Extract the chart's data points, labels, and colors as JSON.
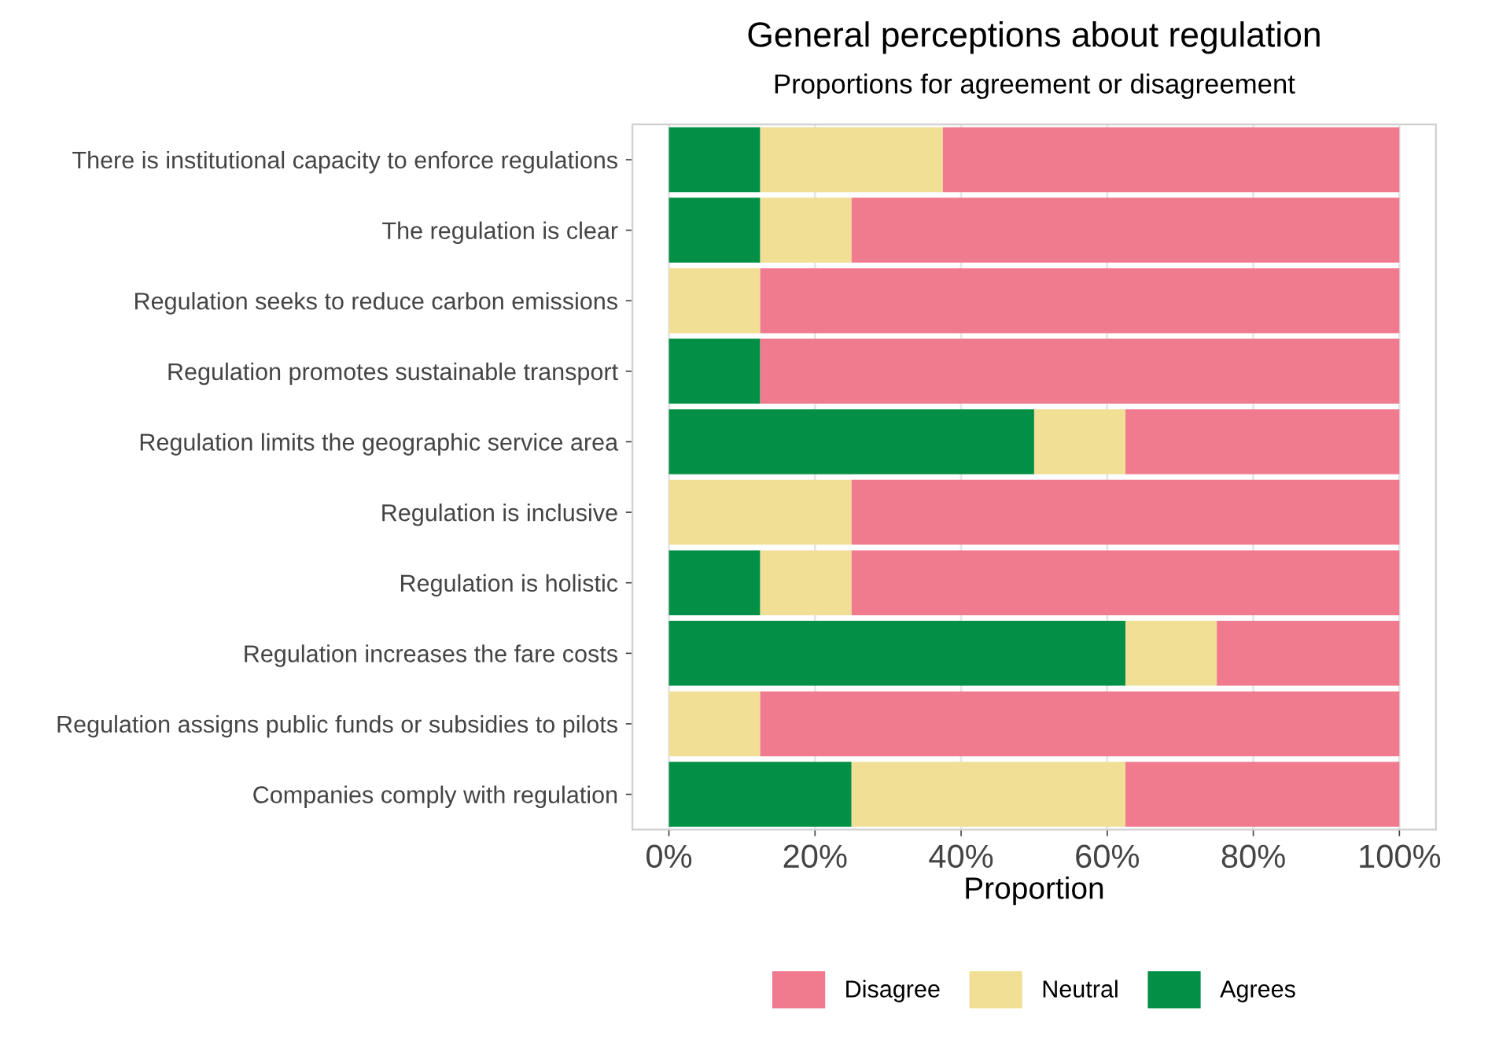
{
  "chart_data": {
    "type": "bar",
    "orientation": "horizontal",
    "stacked": true,
    "title": "General perceptions about regulation",
    "subtitle": "Proportions for agreement or disagreement",
    "xlabel": "Proportion",
    "categories": [
      "There is institutional capacity to enforce regulations",
      "The regulation is clear",
      "Regulation seeks to reduce carbon emissions",
      "Regulation promotes sustainable transport",
      "Regulation limits the geographic service area",
      "Regulation is inclusive",
      "Regulation is holistic",
      "Regulation increases the fare costs",
      "Regulation assigns public funds or subsidies to pilots",
      "Companies comply with regulation"
    ],
    "series": [
      {
        "name": "Agrees",
        "color": "#038f45",
        "values": [
          12.5,
          12.5,
          0,
          12.5,
          50,
          0,
          12.5,
          62.5,
          0,
          25
        ]
      },
      {
        "name": "Neutral",
        "color": "#f0df95",
        "values": [
          25,
          12.5,
          12.5,
          0,
          12.5,
          25,
          12.5,
          12.5,
          12.5,
          37.5
        ]
      },
      {
        "name": "Disagree",
        "color": "#f07a8e",
        "values": [
          62.5,
          75,
          87.5,
          87.5,
          37.5,
          75,
          75,
          25,
          87.5,
          37.5
        ]
      }
    ],
    "xlim": [
      -5,
      105
    ],
    "xticks": [
      {
        "value": 0,
        "label": "0%"
      },
      {
        "value": 20,
        "label": "20%"
      },
      {
        "value": 40,
        "label": "40%"
      },
      {
        "value": 60,
        "label": "60%"
      },
      {
        "value": 80,
        "label": "80%"
      },
      {
        "value": 100,
        "label": "100%"
      }
    ],
    "grid": "x",
    "legend": "bottom"
  }
}
